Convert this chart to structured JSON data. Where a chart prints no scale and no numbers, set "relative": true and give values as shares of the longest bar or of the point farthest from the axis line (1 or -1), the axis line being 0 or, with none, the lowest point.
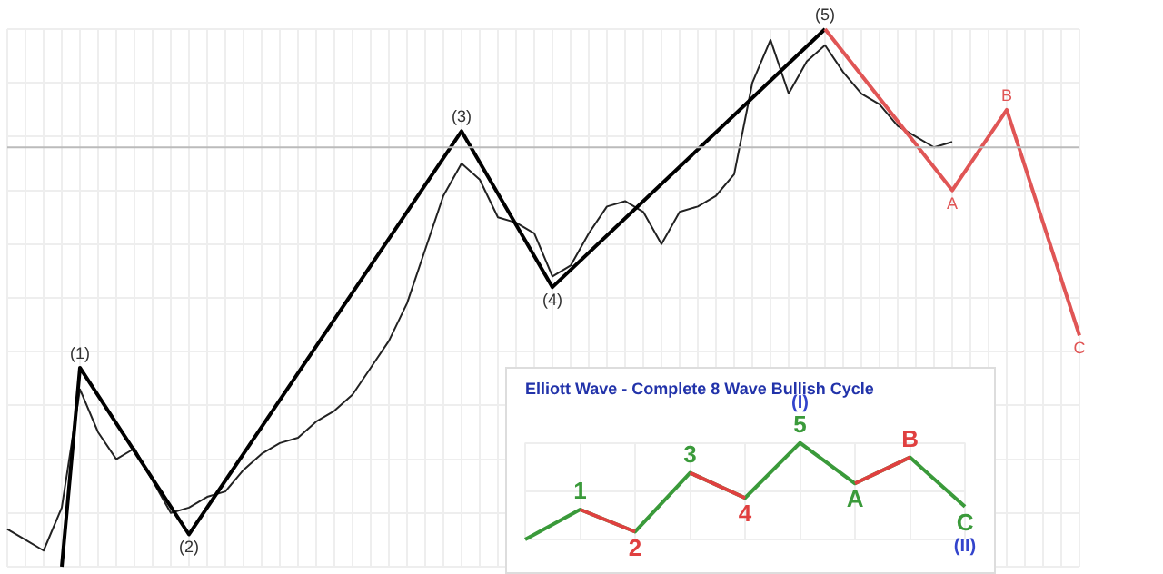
{
  "chart_data": [
    {
      "type": "line",
      "relative": true,
      "grid": true,
      "categories": [
        null,
        null,
        null,
        null,
        null,
        null,
        null,
        null,
        null,
        null,
        null,
        null,
        null,
        null,
        null,
        null,
        null,
        null,
        null,
        null,
        null,
        null,
        null,
        null,
        null,
        null,
        null,
        null,
        null,
        null,
        null,
        null,
        null,
        null,
        null,
        null,
        null,
        null,
        null,
        null,
        null,
        null,
        null,
        null,
        null,
        null,
        null,
        null,
        null,
        null,
        null,
        null,
        null,
        null,
        null,
        null,
        null,
        null,
        null,
        null
      ],
      "series": [
        {
          "color": "#222222",
          "values": [
            0.07,
            0.05,
            0.03,
            0.11,
            0.33,
            0.25,
            0.2,
            0.22,
            0.16,
            0.1,
            0.11,
            0.13,
            0.14,
            0.18,
            0.21,
            0.23,
            0.24,
            0.27,
            0.29,
            0.32,
            0.37,
            0.42,
            0.49,
            0.59,
            0.69,
            0.75,
            0.72,
            0.65,
            0.64,
            0.62,
            0.54,
            0.56,
            0.62,
            0.67,
            0.68,
            0.66,
            0.6,
            0.66,
            0.67,
            0.69,
            0.73,
            0.9,
            0.98,
            0.88,
            0.94,
            0.97,
            0.92,
            0.88,
            0.86,
            0.82,
            0.8,
            0.78,
            0.79,
            null,
            null,
            null,
            null,
            null,
            null,
            null
          ]
        },
        {
          "color": "#000000",
          "values": [
            null,
            null,
            null,
            0,
            0.37,
            null,
            null,
            null,
            null,
            null,
            0.06,
            null,
            null,
            null,
            null,
            null,
            null,
            null,
            null,
            null,
            null,
            null,
            null,
            null,
            null,
            0.81,
            null,
            null,
            null,
            null,
            0.52,
            null,
            null,
            null,
            null,
            null,
            null,
            null,
            null,
            null,
            null,
            null,
            null,
            null,
            null,
            1,
            null,
            null,
            null,
            null,
            null,
            null,
            null,
            null,
            null,
            null,
            null,
            null,
            null,
            null
          ]
        },
        {
          "color": "#e05555",
          "values": [
            null,
            null,
            null,
            null,
            null,
            null,
            null,
            null,
            null,
            null,
            null,
            null,
            null,
            null,
            null,
            null,
            null,
            null,
            null,
            null,
            null,
            null,
            null,
            null,
            null,
            null,
            null,
            null,
            null,
            null,
            null,
            null,
            null,
            null,
            null,
            null,
            null,
            null,
            null,
            null,
            null,
            null,
            null,
            null,
            null,
            1,
            null,
            null,
            null,
            null,
            null,
            null,
            0.7,
            null,
            null,
            0.85,
            null,
            null,
            null,
            0.43
          ]
        }
      ],
      "annotations": [
        {
          "text": "(1)",
          "y": 0.37
        },
        {
          "text": "(2)",
          "y": 0.06
        },
        {
          "text": "(3)",
          "y": 0.81
        },
        {
          "text": "(4)",
          "y": 0.52
        },
        {
          "text": "(5)",
          "y": 1
        },
        {
          "text": "A",
          "y": 0.7
        },
        {
          "text": "B",
          "y": 0.85
        },
        {
          "text": "C",
          "y": 0.43
        }
      ],
      "ref_lines": [
        {
          "axis": "y",
          "value": 0.78,
          "color": "#bbbbbb"
        }
      ]
    },
    {
      "type": "line",
      "relative": true,
      "grid": true,
      "title": "Elliott Wave - Complete 8 Wave Bullish Cycle",
      "categories": [
        null,
        null,
        null,
        null,
        null,
        null,
        null,
        null,
        null
      ],
      "series": [
        {
          "color": "#3a9a3a",
          "values": [
            0,
            0.31,
            0.08,
            0.69,
            0.43,
            1,
            0.58,
            0.85,
            0.34
          ]
        },
        {
          "color": "#e04040",
          "values": [
            null,
            0.31,
            0.08,
            null,
            null,
            null,
            null,
            null,
            null
          ]
        },
        {
          "color": "#e04040",
          "values": [
            null,
            null,
            null,
            0.69,
            0.43,
            null,
            null,
            null,
            null
          ]
        },
        {
          "color": "#e04040",
          "values": [
            null,
            null,
            null,
            null,
            null,
            null,
            0.58,
            0.85,
            null
          ]
        }
      ],
      "annotations": [
        {
          "text": "1",
          "y": 0.31
        },
        {
          "text": "2",
          "y": 0.08
        },
        {
          "text": "3",
          "y": 0.69
        },
        {
          "text": "4",
          "y": 0.43
        },
        {
          "text": "5",
          "y": 1
        },
        {
          "text": "(I)",
          "y": 1
        },
        {
          "text": "A",
          "y": 0.58
        },
        {
          "text": "B",
          "y": 0.85
        },
        {
          "text": "C",
          "y": 0.34
        },
        {
          "text": "(II)",
          "y": 0.34
        }
      ]
    }
  ]
}
